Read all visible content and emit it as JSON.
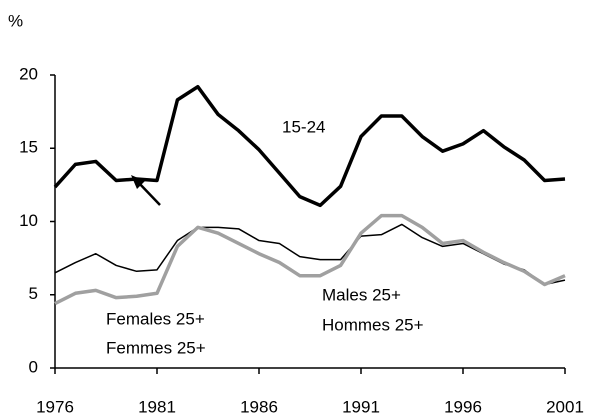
{
  "chart_data": {
    "type": "line",
    "y_unit": "%",
    "x": [
      1976,
      1977,
      1978,
      1979,
      1980,
      1981,
      1982,
      1983,
      1984,
      1985,
      1986,
      1987,
      1988,
      1989,
      1990,
      1991,
      1992,
      1993,
      1994,
      1995,
      1996,
      1997,
      1998,
      1999,
      2000,
      2001
    ],
    "series": [
      {
        "name": "15-24",
        "color": "#000000",
        "width": 3.5,
        "values": [
          12.35,
          13.9,
          14.1,
          12.8,
          12.9,
          12.8,
          18.3,
          19.2,
          17.3,
          16.2,
          14.9,
          13.3,
          11.7,
          11.1,
          12.4,
          15.8,
          17.2,
          17.2,
          15.8,
          14.8,
          15.3,
          16.2,
          15.1,
          14.2,
          12.8,
          12.9
        ]
      },
      {
        "name": "Males 25+",
        "name_fr": "Hommes 25+",
        "color": "#000000",
        "width": 1.5,
        "values": [
          6.5,
          7.2,
          7.8,
          7.0,
          6.6,
          6.7,
          8.7,
          9.6,
          9.6,
          9.5,
          8.7,
          8.5,
          7.6,
          7.4,
          7.4,
          9.0,
          9.1,
          9.8,
          8.9,
          8.3,
          8.5,
          7.8,
          7.1,
          6.7,
          5.7,
          6.0
        ]
      },
      {
        "name": "Females 25+",
        "name_fr": "Femmes 25+",
        "color": "#a0a0a0",
        "width": 3.5,
        "values": [
          4.4,
          5.1,
          5.3,
          4.8,
          4.9,
          5.1,
          8.3,
          9.6,
          9.2,
          8.5,
          7.8,
          7.2,
          6.3,
          6.3,
          7.0,
          9.2,
          10.4,
          10.4,
          9.6,
          8.5,
          8.7,
          7.9,
          7.2,
          6.6,
          5.7,
          6.3
        ]
      }
    ],
    "xlim": [
      1976,
      2001
    ],
    "xticks": [
      1976,
      1981,
      1986,
      1991,
      1996,
      2001
    ],
    "ylim": [
      0,
      20
    ],
    "yticks": [
      0,
      5,
      10,
      15,
      20
    ]
  }
}
